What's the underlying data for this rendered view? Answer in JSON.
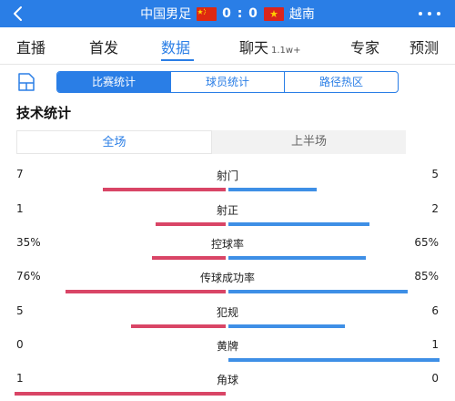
{
  "header": {
    "back_icon": "back-arrow-icon",
    "home_team": "中国男足",
    "home_flag_color": "#de2910",
    "score": "0 : 0",
    "away_team": "越南",
    "away_flag_color": "#da251d",
    "more_icon": "more-dots-icon",
    "bar_color": "#2a7ee6"
  },
  "nav": {
    "tabs": [
      {
        "label": "直播",
        "sub": ""
      },
      {
        "label": "首发",
        "sub": ""
      },
      {
        "label": "数据",
        "sub": ""
      },
      {
        "label": "聊天",
        "sub": "1.1w+"
      },
      {
        "label": "专家",
        "sub": ""
      },
      {
        "label": "预测",
        "sub": ""
      }
    ],
    "active": "数据"
  },
  "stats_icon": "stats-document-icon",
  "segment": {
    "items": [
      "比赛统计",
      "球员统计",
      "路径热区"
    ],
    "active": "比赛统计"
  },
  "section_title": "技术统计",
  "period": {
    "items": [
      "全场",
      "上半场"
    ],
    "active": "全场"
  },
  "colors": {
    "home": "#d94566",
    "away": "#3e8fe6"
  },
  "stats": [
    {
      "label": "射门",
      "home": "7",
      "away": "5",
      "home_share": 0.58,
      "away_share": 0.42
    },
    {
      "label": "射正",
      "home": "1",
      "away": "2",
      "home_share": 0.33,
      "away_share": 0.67
    },
    {
      "label": "控球率",
      "home": "35%",
      "away": "65%",
      "home_share": 0.35,
      "away_share": 0.65
    },
    {
      "label": "传球成功率",
      "home": "76%",
      "away": "85%",
      "home_share": 0.76,
      "away_share": 0.85
    },
    {
      "label": "犯规",
      "home": "5",
      "away": "6",
      "home_share": 0.45,
      "away_share": 0.55
    },
    {
      "label": "黄牌",
      "home": "0",
      "away": "1",
      "home_share": 0.0,
      "away_share": 1.0
    },
    {
      "label": "角球",
      "home": "1",
      "away": "0",
      "home_share": 1.0,
      "away_share": 0.0
    }
  ]
}
